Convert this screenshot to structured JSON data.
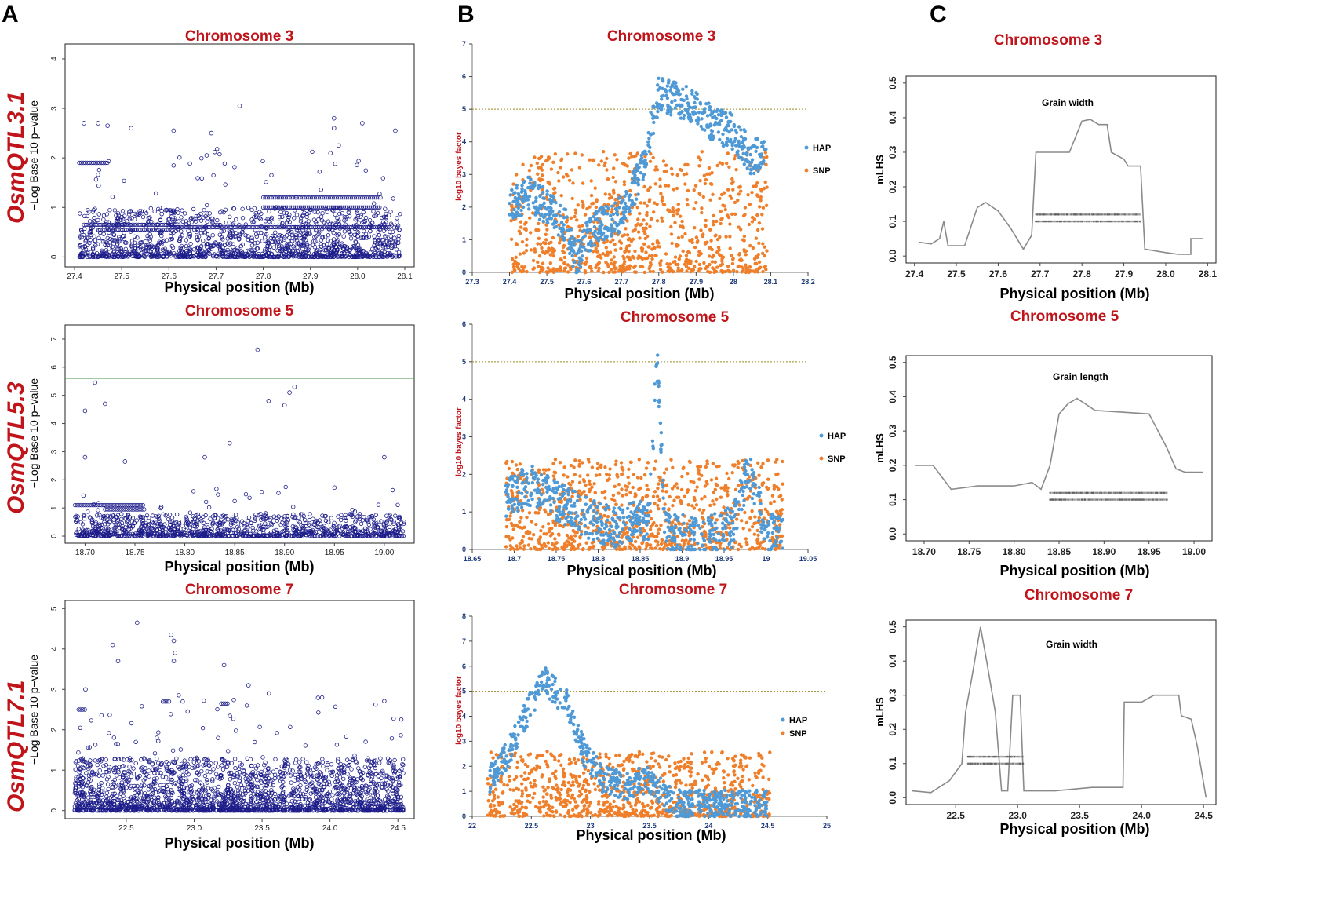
{
  "figure": {
    "panel_letters": [
      "A",
      "B",
      "C"
    ],
    "row_labels": [
      "OsmQTL3.1",
      "OsmQTL5.3",
      "OsmQTL7.1"
    ],
    "colors": {
      "title": "#c0141b",
      "gwas_points": "#1c1c8a",
      "hap": "#4f9ad6",
      "snp": "#ef7f2a",
      "mlhs": "#8a8a8a",
      "threshold_b": "#9a8a20",
      "threshold_a": "#6aaa6a"
    }
  },
  "chart_data": [
    {
      "id": "A3",
      "type": "scatter",
      "title": "Chromosome 3",
      "xlabel": "Physical position (Mb)",
      "ylabel": "−Log Base 10 p−value",
      "xlim": [
        27.38,
        28.12
      ],
      "ylim": [
        -0.2,
        4.3
      ],
      "xticks": [
        "27.4",
        "27.5",
        "27.6",
        "27.7",
        "27.8",
        "27.9",
        "28.0",
        "28.1"
      ],
      "yticks": [
        "0",
        "1",
        "2",
        "3",
        "4"
      ],
      "x_range": [
        27.41,
        28.09
      ],
      "dense_max": 1.0,
      "n_points": 1500,
      "blocks": [
        {
          "x0": 27.41,
          "x1": 27.47,
          "y": 1.9
        },
        {
          "x0": 27.42,
          "x1": 27.61,
          "y": 0.65
        },
        {
          "x0": 27.45,
          "x1": 27.6,
          "y": 0.55
        },
        {
          "x0": 27.8,
          "x1": 27.87,
          "y": 1.2
        },
        {
          "x0": 27.8,
          "x1": 28.05,
          "y": 1.0
        },
        {
          "x0": 27.87,
          "x1": 28.05,
          "y": 1.2
        },
        {
          "x0": 27.6,
          "x1": 28.07,
          "y": 0.6
        }
      ],
      "outliers": [
        {
          "x": 27.42,
          "y": 2.7
        },
        {
          "x": 27.45,
          "y": 2.7
        },
        {
          "x": 27.47,
          "y": 2.65
        },
        {
          "x": 27.52,
          "y": 2.6
        },
        {
          "x": 27.61,
          "y": 2.55
        },
        {
          "x": 27.69,
          "y": 2.5
        },
        {
          "x": 27.75,
          "y": 3.05
        },
        {
          "x": 27.95,
          "y": 2.8
        },
        {
          "x": 27.95,
          "y": 2.6
        },
        {
          "x": 28.01,
          "y": 2.7
        },
        {
          "x": 28.08,
          "y": 2.55
        },
        {
          "x": 27.68,
          "y": 2.05
        },
        {
          "x": 27.96,
          "y": 2.25
        }
      ]
    },
    {
      "id": "A5",
      "type": "scatter",
      "title": "Chromosome 5",
      "xlabel": "Physical position (Mb)",
      "ylabel": "−Log Base 10 p−value",
      "xlim": [
        18.68,
        19.03
      ],
      "ylim": [
        -0.25,
        7.5
      ],
      "xticks": [
        "18.70",
        "18.75",
        "18.80",
        "18.85",
        "18.90",
        "18.95",
        "19.00"
      ],
      "yticks": [
        "0",
        "1",
        "2",
        "3",
        "4",
        "5",
        "6",
        "7"
      ],
      "x_range": [
        18.69,
        19.02
      ],
      "dense_max": 0.8,
      "n_points": 1100,
      "threshold": 5.6,
      "blocks": [
        {
          "x0": 18.69,
          "x1": 18.76,
          "y": 1.1
        },
        {
          "x0": 18.72,
          "x1": 18.76,
          "y": 0.95
        }
      ],
      "outliers": [
        {
          "x": 18.71,
          "y": 5.45
        },
        {
          "x": 18.72,
          "y": 4.7
        },
        {
          "x": 18.7,
          "y": 4.45
        },
        {
          "x": 18.873,
          "y": 6.62
        },
        {
          "x": 18.884,
          "y": 4.8
        },
        {
          "x": 18.9,
          "y": 4.65
        },
        {
          "x": 18.905,
          "y": 5.1
        },
        {
          "x": 18.91,
          "y": 5.3
        },
        {
          "x": 18.845,
          "y": 3.3
        },
        {
          "x": 18.82,
          "y": 2.8
        },
        {
          "x": 18.7,
          "y": 2.8
        },
        {
          "x": 18.74,
          "y": 2.65
        },
        {
          "x": 19.0,
          "y": 2.8
        }
      ]
    },
    {
      "id": "A7",
      "type": "scatter",
      "title": "Chromosome 7",
      "xlabel": "Physical position (Mb)",
      "ylabel": "−Log Base 10 p−value",
      "xlim": [
        22.05,
        24.62
      ],
      "ylim": [
        -0.2,
        5.2
      ],
      "xticks": [
        "22.5",
        "23.0",
        "23.5",
        "24.0",
        "24.5"
      ],
      "yticks": [
        "0",
        "1",
        "2",
        "3",
        "4",
        "5"
      ],
      "x_range": [
        22.12,
        24.54
      ],
      "dense_max": 1.3,
      "n_points": 2200,
      "blocks": [
        {
          "x0": 22.77,
          "x1": 22.83,
          "y": 2.7
        },
        {
          "x0": 22.15,
          "x1": 22.2,
          "y": 2.5
        },
        {
          "x0": 23.2,
          "x1": 23.25,
          "y": 2.65
        }
      ],
      "outliers": [
        {
          "x": 22.58,
          "y": 4.65
        },
        {
          "x": 22.4,
          "y": 4.1
        },
        {
          "x": 22.83,
          "y": 4.35
        },
        {
          "x": 22.85,
          "y": 4.2
        },
        {
          "x": 22.86,
          "y": 3.9
        },
        {
          "x": 22.85,
          "y": 3.7
        },
        {
          "x": 22.44,
          "y": 3.7
        },
        {
          "x": 23.22,
          "y": 3.6
        },
        {
          "x": 22.2,
          "y": 3.0
        },
        {
          "x": 23.4,
          "y": 3.1
        },
        {
          "x": 23.55,
          "y": 2.9
        }
      ]
    },
    {
      "id": "B3",
      "type": "scatter",
      "title": "Chromosome 3",
      "xlabel": "Physical position (Mb)",
      "ylabel": "log10 bayes factor",
      "xlim": [
        27.3,
        28.2
      ],
      "ylim": [
        0,
        7
      ],
      "xticks": [
        "27.3",
        "27.4",
        "27.5",
        "27.6",
        "27.7",
        "27.8",
        "27.9",
        "28",
        "28.1",
        "28.2"
      ],
      "yticks": [
        "0",
        "1",
        "2",
        "3",
        "4",
        "5",
        "6",
        "7"
      ],
      "threshold": 5,
      "series": [
        {
          "name": "HAP"
        },
        {
          "name": "SNP"
        }
      ],
      "hap_profile": [
        [
          27.4,
          2.0
        ],
        [
          27.45,
          2.4
        ],
        [
          27.5,
          2.0
        ],
        [
          27.55,
          1.4
        ],
        [
          27.58,
          0.3
        ],
        [
          27.6,
          1.0
        ],
        [
          27.65,
          1.5
        ],
        [
          27.7,
          1.8
        ],
        [
          27.75,
          3.0
        ],
        [
          27.8,
          5.5
        ],
        [
          27.85,
          5.3
        ],
        [
          27.9,
          5.0
        ],
        [
          27.95,
          4.5
        ],
        [
          28.0,
          4.3
        ],
        [
          28.05,
          3.5
        ],
        [
          28.09,
          3.8
        ]
      ],
      "snp_range": [
        27.4,
        28.09
      ],
      "snp_max": 3.7
    },
    {
      "id": "B5",
      "type": "scatter",
      "title": "Chromosome 5",
      "xlabel": "Physical position (Mb)",
      "ylabel": "log10 bayes factor",
      "xlim": [
        18.65,
        19.05
      ],
      "ylim": [
        0,
        6
      ],
      "xticks": [
        "18.65",
        "18.7",
        "18.75",
        "18.8",
        "18.85",
        "18.9",
        "18.95",
        "19",
        "19.05"
      ],
      "yticks": [
        "0",
        "1",
        "2",
        "3",
        "4",
        "5",
        "6"
      ],
      "threshold": 5,
      "series": [
        {
          "name": "HAP"
        },
        {
          "name": "SNP"
        }
      ],
      "hap_profile": [
        [
          18.69,
          1.4
        ],
        [
          18.72,
          1.7
        ],
        [
          18.75,
          1.3
        ],
        [
          18.78,
          0.9
        ],
        [
          18.82,
          0.6
        ],
        [
          18.86,
          0.8
        ],
        [
          18.87,
          5.0
        ],
        [
          18.88,
          0.5
        ],
        [
          18.92,
          0.3
        ],
        [
          18.96,
          0.6
        ],
        [
          18.98,
          2.2
        ],
        [
          19.0,
          0.5
        ],
        [
          19.02,
          0.4
        ]
      ],
      "snp_range": [
        18.69,
        19.02
      ],
      "snp_max": 2.4
    },
    {
      "id": "B7",
      "type": "scatter",
      "title": "Chromosome 7",
      "xlabel": "Physical position (Mb)",
      "ylabel": "log10 bayes factor",
      "xlim": [
        22,
        25
      ],
      "ylim": [
        0,
        8
      ],
      "xticks": [
        "22",
        "22.5",
        "23",
        "23.5",
        "24",
        "24.5",
        "25"
      ],
      "yticks": [
        "0",
        "1",
        "2",
        "3",
        "4",
        "5",
        "6",
        "7",
        "8"
      ],
      "threshold": 5,
      "series": [
        {
          "name": "HAP"
        },
        {
          "name": "SNP"
        }
      ],
      "hap_profile": [
        [
          22.15,
          1.5
        ],
        [
          22.3,
          2.5
        ],
        [
          22.45,
          4.0
        ],
        [
          22.6,
          5.5
        ],
        [
          22.7,
          5.0
        ],
        [
          22.8,
          4.5
        ],
        [
          22.95,
          2.5
        ],
        [
          23.1,
          1.5
        ],
        [
          23.3,
          1.2
        ],
        [
          23.5,
          1.5
        ],
        [
          23.7,
          0.5
        ],
        [
          24.0,
          0.5
        ],
        [
          24.3,
          0.5
        ],
        [
          24.5,
          0.5
        ]
      ],
      "snp_range": [
        22.13,
        24.52
      ],
      "snp_max": 2.6
    },
    {
      "id": "C3",
      "type": "line",
      "title": "Chromosome 3",
      "xlabel": "Physical position (Mb)",
      "ylabel": "mLHS",
      "trait": "Grain width",
      "xlim": [
        27.38,
        28.12
      ],
      "ylim": [
        -0.02,
        0.52
      ],
      "xticks": [
        "27.4",
        "27.5",
        "27.6",
        "27.7",
        "27.8",
        "27.9",
        "28.0",
        "28.1"
      ],
      "yticks": [
        "0.0",
        "0.1",
        "0.2",
        "0.3",
        "0.4",
        "0.5"
      ],
      "points": [
        [
          27.41,
          0.04
        ],
        [
          27.44,
          0.035
        ],
        [
          27.46,
          0.05
        ],
        [
          27.47,
          0.1
        ],
        [
          27.48,
          0.03
        ],
        [
          27.52,
          0.03
        ],
        [
          27.55,
          0.14
        ],
        [
          27.57,
          0.155
        ],
        [
          27.6,
          0.13
        ],
        [
          27.63,
          0.08
        ],
        [
          27.66,
          0.02
        ],
        [
          27.68,
          0.06
        ],
        [
          27.69,
          0.3
        ],
        [
          27.72,
          0.3
        ],
        [
          27.75,
          0.3
        ],
        [
          27.77,
          0.3
        ],
        [
          27.8,
          0.39
        ],
        [
          27.82,
          0.395
        ],
        [
          27.84,
          0.38
        ],
        [
          27.86,
          0.38
        ],
        [
          27.87,
          0.3
        ],
        [
          27.9,
          0.28
        ],
        [
          27.91,
          0.26
        ],
        [
          27.94,
          0.26
        ],
        [
          27.95,
          0.02
        ],
        [
          28.0,
          0.01
        ],
        [
          28.03,
          0.005
        ],
        [
          28.06,
          0.005
        ],
        [
          28.06,
          0.05
        ],
        [
          28.09,
          0.05
        ]
      ],
      "band_x": [
        27.69,
        27.94
      ],
      "band_y": [
        0.12,
        0.1
      ]
    },
    {
      "id": "C5",
      "type": "line",
      "title": "Chromosome 5",
      "xlabel": "Physical position (Mb)",
      "ylabel": "mLHS",
      "trait": "Grain length",
      "xlim": [
        18.68,
        19.02
      ],
      "ylim": [
        -0.02,
        0.52
      ],
      "xticks": [
        "18.70",
        "18.75",
        "18.80",
        "18.85",
        "18.90",
        "18.95",
        "19.00"
      ],
      "yticks": [
        "0.0",
        "0.1",
        "0.2",
        "0.3",
        "0.4",
        "0.5"
      ],
      "points": [
        [
          18.69,
          0.2
        ],
        [
          18.71,
          0.2
        ],
        [
          18.73,
          0.13
        ],
        [
          18.76,
          0.14
        ],
        [
          18.8,
          0.14
        ],
        [
          18.82,
          0.15
        ],
        [
          18.83,
          0.13
        ],
        [
          18.84,
          0.2
        ],
        [
          18.85,
          0.35
        ],
        [
          18.86,
          0.38
        ],
        [
          18.87,
          0.395
        ],
        [
          18.89,
          0.36
        ],
        [
          18.92,
          0.355
        ],
        [
          18.95,
          0.35
        ],
        [
          18.96,
          0.3
        ],
        [
          18.97,
          0.25
        ],
        [
          18.98,
          0.19
        ],
        [
          18.99,
          0.18
        ],
        [
          19.01,
          0.18
        ]
      ],
      "band_x": [
        18.84,
        18.97
      ],
      "band_y": [
        0.12,
        0.1
      ]
    },
    {
      "id": "C7",
      "type": "line",
      "title": "Chromosome 7",
      "xlabel": "Physical position (Mb)",
      "ylabel": "mLHS",
      "trait": "Grain width",
      "xlim": [
        22.1,
        24.6
      ],
      "ylim": [
        -0.02,
        0.52
      ],
      "xticks": [
        "22.5",
        "23.0",
        "23.5",
        "24.0",
        "24.5"
      ],
      "yticks": [
        "0.0",
        "0.1",
        "0.2",
        "0.3",
        "0.4",
        "0.5"
      ],
      "points": [
        [
          22.15,
          0.02
        ],
        [
          22.3,
          0.015
        ],
        [
          22.45,
          0.05
        ],
        [
          22.55,
          0.1
        ],
        [
          22.58,
          0.25
        ],
        [
          22.63,
          0.35
        ],
        [
          22.7,
          0.5
        ],
        [
          22.75,
          0.4
        ],
        [
          22.82,
          0.25
        ],
        [
          22.87,
          0.02
        ],
        [
          22.92,
          0.02
        ],
        [
          22.96,
          0.3
        ],
        [
          23.02,
          0.3
        ],
        [
          23.05,
          0.02
        ],
        [
          23.3,
          0.02
        ],
        [
          23.6,
          0.03
        ],
        [
          23.85,
          0.03
        ],
        [
          23.86,
          0.28
        ],
        [
          24.0,
          0.28
        ],
        [
          24.1,
          0.3
        ],
        [
          24.3,
          0.3
        ],
        [
          24.32,
          0.24
        ],
        [
          24.4,
          0.23
        ],
        [
          24.45,
          0.15
        ],
        [
          24.52,
          0.0
        ]
      ],
      "band_x": [
        22.6,
        23.05
      ],
      "band_y": [
        0.12,
        0.1
      ]
    }
  ]
}
